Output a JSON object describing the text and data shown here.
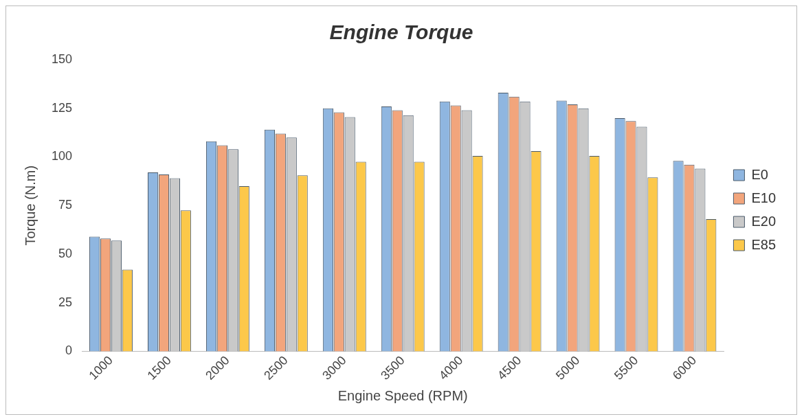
{
  "chart_data": {
    "type": "bar",
    "title": "Engine Torque",
    "xlabel": "Engine Speed (RPM)",
    "ylabel": "Torque (N.m)",
    "categories": [
      "1000",
      "1500",
      "2000",
      "2500",
      "3000",
      "3500",
      "4000",
      "4500",
      "5000",
      "5500",
      "6000"
    ],
    "series": [
      {
        "name": "E0",
        "color": "#8fb6e0",
        "values": [
          59,
          92,
          108,
          114,
          125,
          126,
          128.5,
          133,
          129,
          120,
          98
        ]
      },
      {
        "name": "E10",
        "color": "#f2a57c",
        "values": [
          58,
          91,
          106,
          112,
          123,
          124,
          126.5,
          131,
          127,
          118.5,
          96
        ]
      },
      {
        "name": "E20",
        "color": "#c9c9c9",
        "values": [
          57,
          89,
          104,
          110,
          120.5,
          121.5,
          124,
          128.5,
          125,
          115.5,
          94
        ]
      },
      {
        "name": "E85",
        "color": "#fcc84a",
        "values": [
          42,
          72.5,
          85,
          90.5,
          97.5,
          97.5,
          100.5,
          103,
          100.5,
          89.5,
          68
        ]
      }
    ],
    "ylim": [
      0,
      150
    ],
    "yticks": [
      0,
      25,
      50,
      75,
      100,
      125,
      150
    ],
    "grid": false,
    "legend": "right"
  }
}
